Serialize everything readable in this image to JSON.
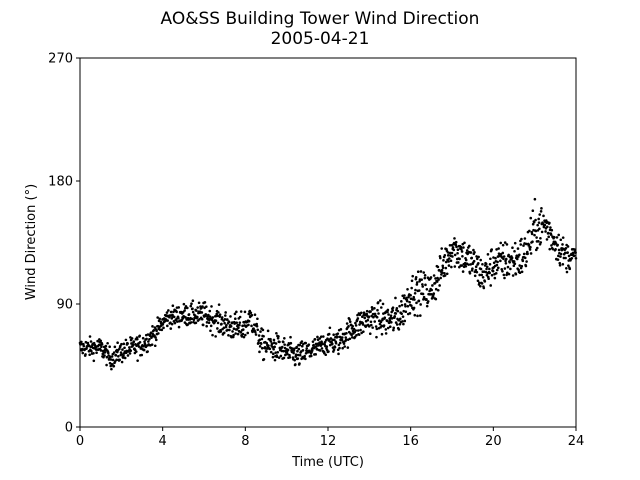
{
  "chart_data": {
    "type": "scatter",
    "title": "AO&SS Building Tower Wind Direction",
    "subtitle": "2005-04-21",
    "xlabel": "Time (UTC)",
    "ylabel": "Wind Direction (°)",
    "xlim": [
      0,
      24
    ],
    "ylim": [
      0,
      270
    ],
    "xticks": [
      0,
      4,
      8,
      12,
      16,
      20,
      24
    ],
    "yticks": [
      0,
      90,
      180,
      270
    ],
    "grid": false,
    "marker_color": "#000000",
    "trend": [
      {
        "x": 0.0,
        "y": 58
      },
      {
        "x": 1.0,
        "y": 58
      },
      {
        "x": 1.5,
        "y": 50
      },
      {
        "x": 2.0,
        "y": 55
      },
      {
        "x": 3.0,
        "y": 60
      },
      {
        "x": 3.7,
        "y": 70
      },
      {
        "x": 4.2,
        "y": 80
      },
      {
        "x": 5.0,
        "y": 82
      },
      {
        "x": 6.0,
        "y": 82
      },
      {
        "x": 7.0,
        "y": 75
      },
      {
        "x": 7.8,
        "y": 72
      },
      {
        "x": 8.3,
        "y": 80
      },
      {
        "x": 8.8,
        "y": 60
      },
      {
        "x": 9.5,
        "y": 58
      },
      {
        "x": 10.5,
        "y": 52
      },
      {
        "x": 11.5,
        "y": 58
      },
      {
        "x": 12.0,
        "y": 62
      },
      {
        "x": 12.5,
        "y": 62
      },
      {
        "x": 13.0,
        "y": 70
      },
      {
        "x": 14.0,
        "y": 80
      },
      {
        "x": 15.0,
        "y": 78
      },
      {
        "x": 15.5,
        "y": 82
      },
      {
        "x": 16.0,
        "y": 98
      },
      {
        "x": 17.0,
        "y": 100
      },
      {
        "x": 17.5,
        "y": 115
      },
      {
        "x": 18.0,
        "y": 132
      },
      {
        "x": 19.0,
        "y": 120
      },
      {
        "x": 19.5,
        "y": 110
      },
      {
        "x": 20.0,
        "y": 120
      },
      {
        "x": 21.0,
        "y": 122
      },
      {
        "x": 21.5,
        "y": 125
      },
      {
        "x": 22.0,
        "y": 145
      },
      {
        "x": 22.5,
        "y": 148
      },
      {
        "x": 23.0,
        "y": 135
      },
      {
        "x": 23.5,
        "y": 125
      },
      {
        "x": 24.0,
        "y": 125
      }
    ],
    "spread": [
      {
        "x": 0,
        "y": 5
      },
      {
        "x": 3,
        "y": 6
      },
      {
        "x": 4,
        "y": 5
      },
      {
        "x": 8,
        "y": 8
      },
      {
        "x": 12,
        "y": 6
      },
      {
        "x": 14,
        "y": 8
      },
      {
        "x": 16,
        "y": 10
      },
      {
        "x": 18,
        "y": 10
      },
      {
        "x": 20,
        "y": 10
      },
      {
        "x": 22,
        "y": 12
      },
      {
        "x": 23.5,
        "y": 8
      },
      {
        "x": 24,
        "y": 5
      }
    ],
    "sample_interval_hours": 0.0167
  }
}
